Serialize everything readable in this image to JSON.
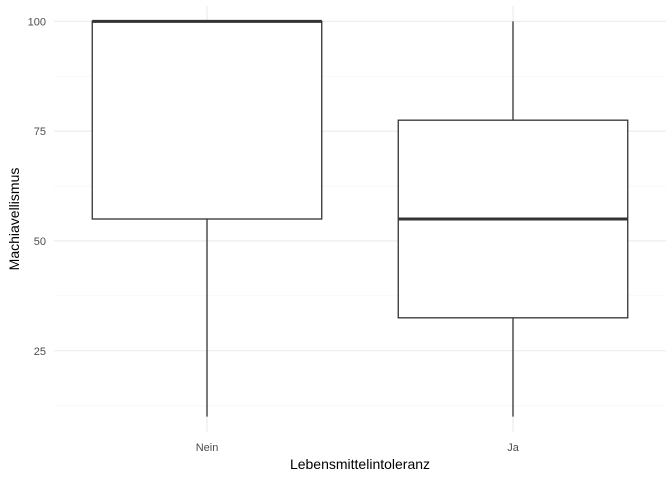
{
  "chart_data": {
    "type": "boxplot",
    "title": "",
    "xlabel": "Lebensmittelintoleranz",
    "ylabel": "Machiavellismus",
    "categories": [
      "Nein",
      "Ja"
    ],
    "boxes": [
      {
        "category": "Nein",
        "min": 10,
        "q1": 55,
        "median": 100,
        "q3": 100,
        "max": 100
      },
      {
        "category": "Ja",
        "min": 10,
        "q1": 32.5,
        "median": 55,
        "q3": 77.5,
        "max": 100
      }
    ],
    "yticks": [
      25,
      50,
      75,
      100
    ],
    "ytick_labels": [
      "25",
      "50",
      "75",
      "100"
    ],
    "yminor": [
      12.5,
      37.5,
      62.5,
      87.5
    ],
    "ylim": [
      6.5,
      103.5
    ],
    "grid": true,
    "colors": {
      "box_stroke": "#333333",
      "box_fill": "#ffffff",
      "grid": "#ebebeb"
    }
  }
}
